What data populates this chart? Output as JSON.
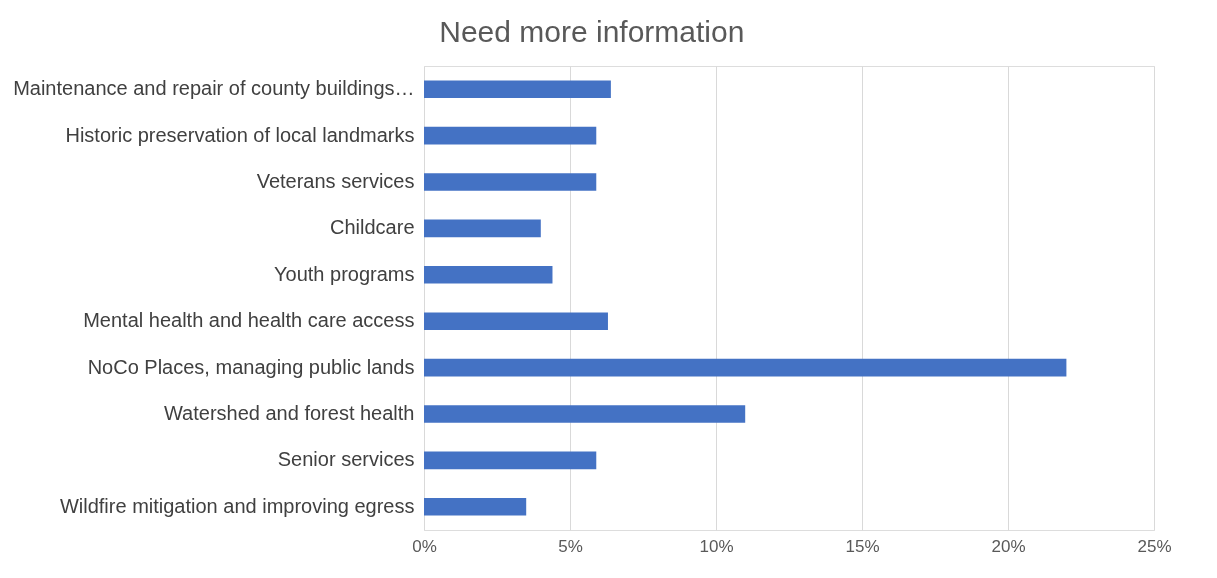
{
  "chart_data": {
    "type": "bar",
    "orientation": "horizontal",
    "title": "Need more information",
    "categories": [
      "Maintenance and repair of county buildings…",
      "Historic preservation of local landmarks",
      "Veterans services",
      "Childcare",
      "Youth programs",
      "Mental health and health care access",
      "NoCo Places, managing public lands",
      "Watershed and forest health",
      "Senior services",
      "Wildfire mitigation and improving egress"
    ],
    "values": [
      6.4,
      5.9,
      5.9,
      4.0,
      4.4,
      6.3,
      22.0,
      11.0,
      5.9,
      3.5
    ],
    "color": "#4472c4",
    "xlim": [
      0,
      25
    ],
    "xticks": [
      {
        "value": 0,
        "label": "0%"
      },
      {
        "value": 5,
        "label": "5%"
      },
      {
        "value": 10,
        "label": "10%"
      },
      {
        "value": 15,
        "label": "15%"
      },
      {
        "value": 20,
        "label": "20%"
      },
      {
        "value": 25,
        "label": "25%"
      }
    ],
    "grid": "x"
  }
}
